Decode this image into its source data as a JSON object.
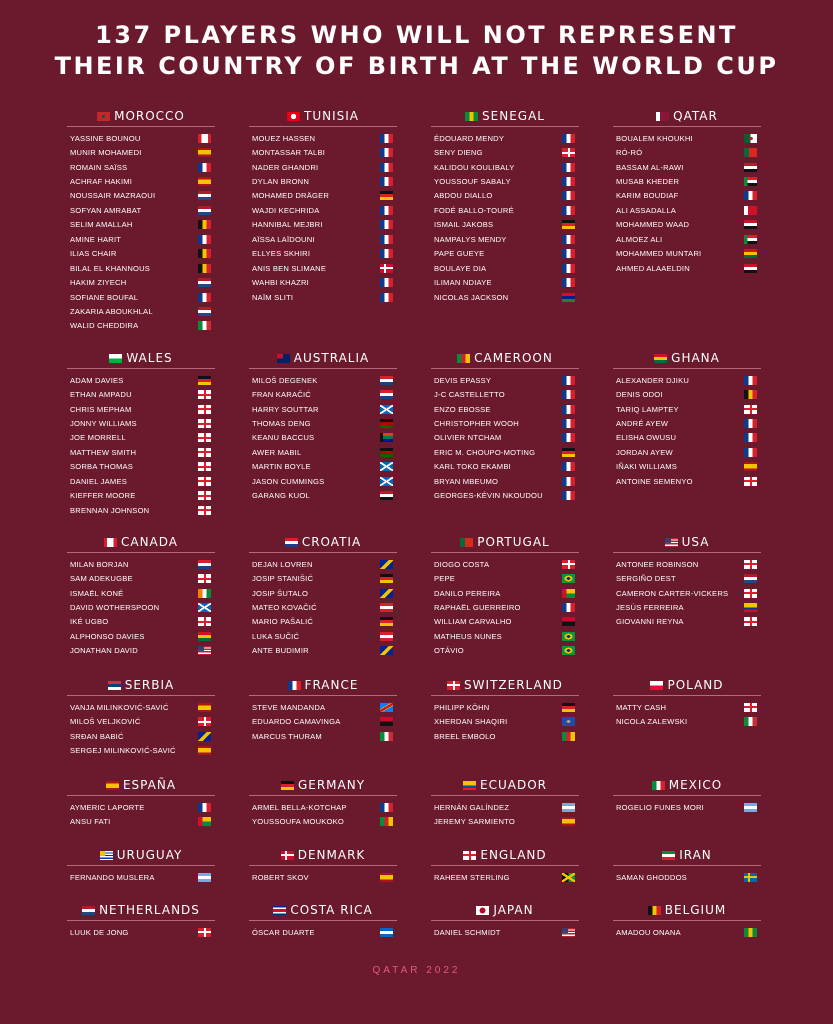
{
  "title": {
    "line1": "137 PLAYERS WHO WILL NOT REPRESENT",
    "line2": "THEIR COUNTRY OF BIRTH AT THE WORLD CUP"
  },
  "footer": "QATAR 2022",
  "teams": [
    {
      "name": "MOROCCO",
      "flag": "morocco",
      "players": [
        {
          "name": "YASSINE BOUNOU",
          "flag": "canada"
        },
        {
          "name": "MUNIR MOHAMEDI",
          "flag": "spain"
        },
        {
          "name": "ROMAIN SAÏSS",
          "flag": "france"
        },
        {
          "name": "ACHRAF HAKIMI",
          "flag": "spain"
        },
        {
          "name": "NOUSSAIR MAZRAOUI",
          "flag": "netherlands"
        },
        {
          "name": "SOFYAN AMRABAT",
          "flag": "netherlands"
        },
        {
          "name": "SELIM AMALLAH",
          "flag": "belgium"
        },
        {
          "name": "AMINE HARIT",
          "flag": "france"
        },
        {
          "name": "ILIAS CHAIR",
          "flag": "belgium"
        },
        {
          "name": "BILAL EL KHANNOUS",
          "flag": "belgium"
        },
        {
          "name": "HAKIM ZIYECH",
          "flag": "netherlands"
        },
        {
          "name": "SOFIANE BOUFAL",
          "flag": "france"
        },
        {
          "name": "ZAKARIA ABOUKHLAL",
          "flag": "netherlands"
        },
        {
          "name": "WALID CHEDDIRA",
          "flag": "italy"
        }
      ]
    },
    {
      "name": "TUNISIA",
      "flag": "tunisia",
      "players": [
        {
          "name": "MOUEZ HASSEN",
          "flag": "france"
        },
        {
          "name": "MONTASSAR TALBI",
          "flag": "france"
        },
        {
          "name": "NADER GHANDRI",
          "flag": "france"
        },
        {
          "name": "DYLAN BRONN",
          "flag": "france"
        },
        {
          "name": "MOHAMED DRÄGER",
          "flag": "germany"
        },
        {
          "name": "WAJDI KECHRIDA",
          "flag": "france"
        },
        {
          "name": "HANNIBAL MEJBRI",
          "flag": "france"
        },
        {
          "name": "AÏSSA LAÏDOUNI",
          "flag": "france"
        },
        {
          "name": "ELLYES SKHIRI",
          "flag": "france"
        },
        {
          "name": "ANIS BEN SLIMANE",
          "flag": "denmark"
        },
        {
          "name": "WAHBI KHAZRI",
          "flag": "france"
        },
        {
          "name": "NAÏM SLITI",
          "flag": "france"
        }
      ]
    },
    {
      "name": "SENEGAL",
      "flag": "senegal",
      "players": [
        {
          "name": "ÉDOUARD MENDY",
          "flag": "france"
        },
        {
          "name": "SENY DIENG",
          "flag": "switzerland"
        },
        {
          "name": "KALIDOU KOULIBALY",
          "flag": "france"
        },
        {
          "name": "YOUSSOUF SABALY",
          "flag": "france"
        },
        {
          "name": "ABDOU DIALLO",
          "flag": "france"
        },
        {
          "name": "FODÉ BALLO-TOURÉ",
          "flag": "france"
        },
        {
          "name": "ISMAIL JAKOBS",
          "flag": "germany"
        },
        {
          "name": "NAMPALYS MENDY",
          "flag": "france"
        },
        {
          "name": "PAPE GUEYE",
          "flag": "france"
        },
        {
          "name": "BOULAYE DIA",
          "flag": "france"
        },
        {
          "name": "ILIMAN NDIAYE",
          "flag": "france"
        },
        {
          "name": "NICOLAS JACKSON",
          "flag": "gambia"
        }
      ]
    },
    {
      "name": "QATAR",
      "flag": "qatar",
      "players": [
        {
          "name": "BOUALEM KHOUKHI",
          "flag": "algeria"
        },
        {
          "name": "RÓ-RÓ",
          "flag": "portugal"
        },
        {
          "name": "BASSAM AL-RAWI",
          "flag": "iraq"
        },
        {
          "name": "MUSAB KHEDER",
          "flag": "sudan"
        },
        {
          "name": "KARIM BOUDIAF",
          "flag": "france"
        },
        {
          "name": "ALI ASSADALLA",
          "flag": "bahrain"
        },
        {
          "name": "MOHAMMED WAAD",
          "flag": "iraq"
        },
        {
          "name": "ALMOEZ ALI",
          "flag": "sudan"
        },
        {
          "name": "MOHAMMED MUNTARI",
          "flag": "ghana"
        },
        {
          "name": "AHMED ALAAELDIN",
          "flag": "egypt"
        }
      ]
    },
    {
      "name": "WALES",
      "flag": "wales",
      "players": [
        {
          "name": "ADAM DAVIES",
          "flag": "germany"
        },
        {
          "name": "ETHAN AMPADU",
          "flag": "england"
        },
        {
          "name": "CHRIS MEPHAM",
          "flag": "england"
        },
        {
          "name": "JONNY WILLIAMS",
          "flag": "england"
        },
        {
          "name": "JOE MORRELL",
          "flag": "england"
        },
        {
          "name": "MATTHEW SMITH",
          "flag": "england"
        },
        {
          "name": "SORBA THOMAS",
          "flag": "england"
        },
        {
          "name": "DANIEL JAMES",
          "flag": "england"
        },
        {
          "name": "KIEFFER MOORE",
          "flag": "england"
        },
        {
          "name": "BRENNAN JOHNSON",
          "flag": "england"
        }
      ]
    },
    {
      "name": "AUSTRALIA",
      "flag": "australia",
      "players": [
        {
          "name": "MILOŠ DEGENEK",
          "flag": "croatia"
        },
        {
          "name": "FRAN KARAČIĆ",
          "flag": "croatia"
        },
        {
          "name": "HARRY SOUTTAR",
          "flag": "scotland"
        },
        {
          "name": "THOMAS DENG",
          "flag": "kenya"
        },
        {
          "name": "KEANU BACCUS",
          "flag": "southafrica"
        },
        {
          "name": "AWER MABIL",
          "flag": "kenya"
        },
        {
          "name": "MARTIN BOYLE",
          "flag": "scotland"
        },
        {
          "name": "JASON CUMMINGS",
          "flag": "scotland"
        },
        {
          "name": "GARANG KUOL",
          "flag": "egypt"
        }
      ]
    },
    {
      "name": "CAMEROON",
      "flag": "cameroon",
      "players": [
        {
          "name": "DEVIS EPASSY",
          "flag": "france"
        },
        {
          "name": "J-C CASTELLETTO",
          "flag": "france"
        },
        {
          "name": "ENZO EBOSSE",
          "flag": "france"
        },
        {
          "name": "CHRISTOPHER WOOH",
          "flag": "france"
        },
        {
          "name": "OLIVIER NTCHAM",
          "flag": "france"
        },
        {
          "name": "ERIC M. CHOUPO-MOTING",
          "flag": "germany"
        },
        {
          "name": "KARL TOKO EKAMBI",
          "flag": "france"
        },
        {
          "name": "BRYAN MBEUMO",
          "flag": "france"
        },
        {
          "name": "GEORGES-KÉVIN NKOUDOU",
          "flag": "france"
        }
      ]
    },
    {
      "name": "GHANA",
      "flag": "ghana",
      "players": [
        {
          "name": "ALEXANDER DJIKU",
          "flag": "france"
        },
        {
          "name": "DENIS ODOI",
          "flag": "belgium"
        },
        {
          "name": "TARIQ LAMPTEY",
          "flag": "england"
        },
        {
          "name": "ANDRÉ AYEW",
          "flag": "france"
        },
        {
          "name": "ELISHA OWUSU",
          "flag": "france"
        },
        {
          "name": "JORDAN AYEW",
          "flag": "france"
        },
        {
          "name": "IÑAKI WILLIAMS",
          "flag": "spain"
        },
        {
          "name": "ANTOINE SEMENYO",
          "flag": "england"
        }
      ]
    },
    {
      "name": "CANADA",
      "flag": "canada",
      "players": [
        {
          "name": "MILAN BORJAN",
          "flag": "croatia"
        },
        {
          "name": "SAM ADEKUGBE",
          "flag": "england"
        },
        {
          "name": "ISMAËL KONÉ",
          "flag": "ivorycoast"
        },
        {
          "name": "DAVID WOTHERSPOON",
          "flag": "scotland"
        },
        {
          "name": "IKÉ UGBO",
          "flag": "england"
        },
        {
          "name": "ALPHONSO DAVIES",
          "flag": "ghana"
        },
        {
          "name": "JONATHAN DAVID",
          "flag": "usa"
        }
      ]
    },
    {
      "name": "CROATIA",
      "flag": "croatia",
      "players": [
        {
          "name": "DEJAN LOVREN",
          "flag": "bosnia"
        },
        {
          "name": "JOSIP STANIŠIĆ",
          "flag": "germany"
        },
        {
          "name": "JOSIP ŠUTALO",
          "flag": "bosnia"
        },
        {
          "name": "MATEO KOVAČIĆ",
          "flag": "austria"
        },
        {
          "name": "MARIO PAŠALIĆ",
          "flag": "germany"
        },
        {
          "name": "LUKA SUČIĆ",
          "flag": "austria"
        },
        {
          "name": "ANTE BUDIMIR",
          "flag": "bosnia"
        }
      ]
    },
    {
      "name": "PORTUGAL",
      "flag": "portugal",
      "players": [
        {
          "name": "DIOGO COSTA",
          "flag": "switzerland"
        },
        {
          "name": "PEPE",
          "flag": "brazil"
        },
        {
          "name": "DANILO PEREIRA",
          "flag": "guineabissau"
        },
        {
          "name": "RAPHAËL GUERREIRO",
          "flag": "france"
        },
        {
          "name": "WILLIAM CARVALHO",
          "flag": "angola"
        },
        {
          "name": "MATHEUS NUNES",
          "flag": "brazil"
        },
        {
          "name": "OTÁVIO",
          "flag": "brazil"
        }
      ]
    },
    {
      "name": "USA",
      "flag": "usa",
      "players": [
        {
          "name": "ANTONEE ROBINSON",
          "flag": "england"
        },
        {
          "name": "SERGIÑO DEST",
          "flag": "netherlands"
        },
        {
          "name": "CAMERON CARTER-VICKERS",
          "flag": "england"
        },
        {
          "name": "JESÚS FERREIRA",
          "flag": "colombia"
        },
        {
          "name": "GIOVANNI REYNA",
          "flag": "england"
        }
      ]
    },
    {
      "name": "SERBIA",
      "flag": "serbia",
      "players": [
        {
          "name": "VANJA MILINKOVIĆ-SAVIĆ",
          "flag": "spain"
        },
        {
          "name": "MILOŠ VELJKOVIĆ",
          "flag": "switzerland"
        },
        {
          "name": "SRĐAN BABIĆ",
          "flag": "bosnia"
        },
        {
          "name": "SERGEJ MILINKOVIĆ-SAVIĆ",
          "flag": "spain"
        }
      ]
    },
    {
      "name": "FRANCE",
      "flag": "france",
      "players": [
        {
          "name": "STEVE MANDANDA",
          "flag": "drcongo"
        },
        {
          "name": "EDUARDO CAMAVINGA",
          "flag": "angola"
        },
        {
          "name": "MARCUS THURAM",
          "flag": "italy"
        }
      ]
    },
    {
      "name": "SWITZERLAND",
      "flag": "switzerland",
      "players": [
        {
          "name": "PHILIPP KÖHN",
          "flag": "germany"
        },
        {
          "name": "XHERDAN SHAQIRI",
          "flag": "kosovo"
        },
        {
          "name": "BREEL EMBOLO",
          "flag": "cameroon"
        }
      ]
    },
    {
      "name": "POLAND",
      "flag": "poland",
      "players": [
        {
          "name": "MATTY CASH",
          "flag": "england"
        },
        {
          "name": "NICOLA ZALEWSKI",
          "flag": "italy"
        }
      ]
    },
    {
      "name": "ESPAÑA",
      "flag": "spain",
      "players": [
        {
          "name": "AYMERIC LAPORTE",
          "flag": "france"
        },
        {
          "name": "ANSU FATI",
          "flag": "guineabissau"
        }
      ]
    },
    {
      "name": "GERMANY",
      "flag": "germany",
      "players": [
        {
          "name": "ARMEL BELLA-KOTCHAP",
          "flag": "france"
        },
        {
          "name": "YOUSSOUFA MOUKOKO",
          "flag": "cameroon"
        }
      ]
    },
    {
      "name": "ECUADOR",
      "flag": "ecuador",
      "players": [
        {
          "name": "HERNÁN GALÍNDEZ",
          "flag": "argentina"
        },
        {
          "name": "JEREMY SARMIENTO",
          "flag": "spain"
        }
      ]
    },
    {
      "name": "MEXICO",
      "flag": "mexico",
      "players": [
        {
          "name": "ROGELIO FUNES MORI",
          "flag": "argentina"
        }
      ]
    },
    {
      "name": "URUGUAY",
      "flag": "uruguay",
      "players": [
        {
          "name": "FERNANDO MUSLERA",
          "flag": "argentina"
        }
      ]
    },
    {
      "name": "DENMARK",
      "flag": "denmark",
      "players": [
        {
          "name": "ROBERT SKOV",
          "flag": "spain"
        }
      ]
    },
    {
      "name": "ENGLAND",
      "flag": "england",
      "players": [
        {
          "name": "RAHEEM STERLING",
          "flag": "jamaica"
        }
      ]
    },
    {
      "name": "IRAN",
      "flag": "iran",
      "players": [
        {
          "name": "SAMAN GHODDOS",
          "flag": "sweden"
        }
      ]
    },
    {
      "name": "NETHERLANDS",
      "flag": "netherlands",
      "players": [
        {
          "name": "LUUK DE JONG",
          "flag": "switzerland"
        }
      ]
    },
    {
      "name": "COSTA RICA",
      "flag": "costarica",
      "players": [
        {
          "name": "ÓSCAR DUARTE",
          "flag": "nicaragua"
        }
      ]
    },
    {
      "name": "JAPAN",
      "flag": "japan",
      "players": [
        {
          "name": "DANIEL SCHMIDT",
          "flag": "usa"
        }
      ]
    },
    {
      "name": "BELGIUM",
      "flag": "belgium",
      "players": [
        {
          "name": "AMADOU ONANA",
          "flag": "senegal"
        }
      ]
    }
  ]
}
